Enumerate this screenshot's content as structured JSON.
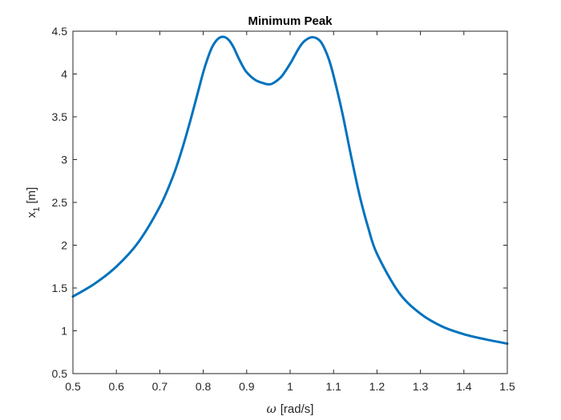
{
  "chart_data": {
    "type": "line",
    "title": "Minimum Peak",
    "xlabel": {
      "symbol": "ω",
      "unit": "[rad/s]"
    },
    "ylabel": {
      "base": "x",
      "subscript": "1",
      "unit": "[m]"
    },
    "xlim": [
      0.5,
      1.5
    ],
    "ylim": [
      0.5,
      4.5
    ],
    "xticks": [
      "0.5",
      "0.6",
      "0.7",
      "0.8",
      "0.9",
      "1",
      "1.1",
      "1.2",
      "1.3",
      "1.4",
      "1.5"
    ],
    "yticks": [
      "0.5",
      "1",
      "1.5",
      "2",
      "2.5",
      "3",
      "3.5",
      "4",
      "4.5"
    ],
    "grid": false,
    "series": [
      {
        "color": "#0072BD",
        "x": [
          0.5,
          0.55,
          0.6,
          0.65,
          0.7,
          0.73,
          0.75,
          0.77,
          0.79,
          0.8,
          0.81,
          0.82,
          0.83,
          0.84,
          0.85,
          0.86,
          0.87,
          0.88,
          0.89,
          0.9,
          0.92,
          0.94,
          0.95,
          0.96,
          0.98,
          1.0,
          1.01,
          1.02,
          1.03,
          1.04,
          1.05,
          1.06,
          1.07,
          1.08,
          1.09,
          1.1,
          1.12,
          1.14,
          1.16,
          1.18,
          1.2,
          1.25,
          1.3,
          1.35,
          1.4,
          1.45,
          1.5
        ],
        "y": [
          1.4,
          1.55,
          1.75,
          2.03,
          2.45,
          2.8,
          3.1,
          3.45,
          3.83,
          4.02,
          4.18,
          4.31,
          4.39,
          4.43,
          4.43,
          4.39,
          4.31,
          4.2,
          4.1,
          4.02,
          3.93,
          3.89,
          3.88,
          3.89,
          3.97,
          4.12,
          4.21,
          4.3,
          4.37,
          4.41,
          4.43,
          4.42,
          4.38,
          4.29,
          4.16,
          3.98,
          3.55,
          3.05,
          2.58,
          2.2,
          1.9,
          1.45,
          1.2,
          1.05,
          0.96,
          0.9,
          0.85
        ]
      }
    ]
  }
}
